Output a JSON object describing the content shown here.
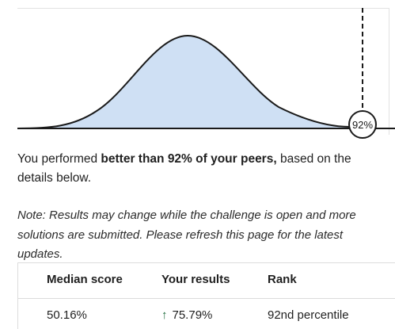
{
  "chart": {
    "marker_label": "92%",
    "percentile": 92
  },
  "summary": {
    "prefix": "You performed ",
    "bold": "better than 92% of your peers,",
    "suffix": " based on the details below."
  },
  "note": "Note: Results may change while the challenge is open and more solutions are submitted. Please refresh this page for the latest updates.",
  "table": {
    "headers": [
      "Median score",
      "Your results",
      "Rank"
    ],
    "row": {
      "median": "50.16%",
      "results_icon": "arrow-up-icon",
      "results": "75.79%",
      "rank": "92nd percentile"
    }
  },
  "colors": {
    "curve_fill": "#cfe0f4",
    "curve_stroke": "#1a1a1a",
    "up_arrow": "#1e6b3c"
  }
}
